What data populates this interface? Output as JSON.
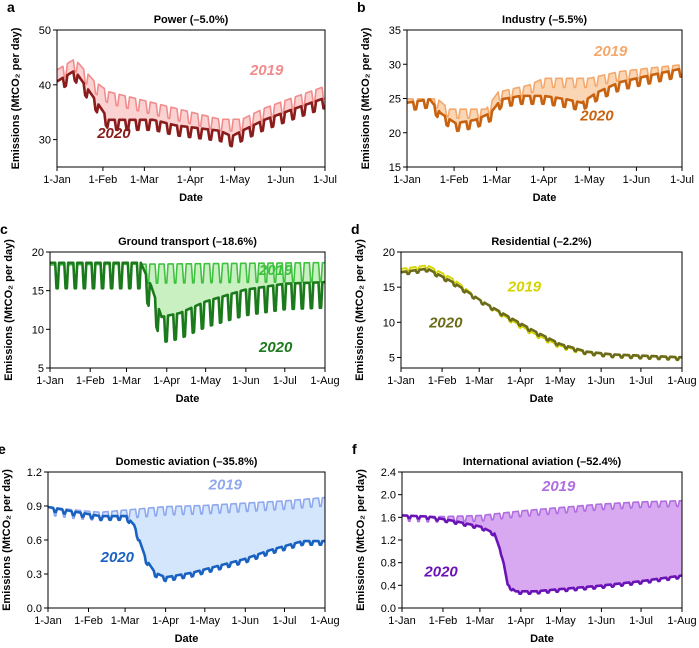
{
  "chart_data": [
    {
      "letter": "a",
      "title": "Power (–5.0%)",
      "type": "line",
      "xlabel": "Date",
      "ylabel": "Emissions (MtCO₂ per day)",
      "x_ticks": [
        "1-Jan",
        "1-Feb",
        "1-Mar",
        "1-Apr",
        "1-May",
        "1-Jun",
        "1-Jul"
      ],
      "x_tick_days": [
        0,
        31,
        59,
        90,
        120,
        151,
        181
      ],
      "xlim": [
        0,
        181
      ],
      "ylim": [
        25,
        50
      ],
      "y_ticks": [
        30,
        40,
        50
      ],
      "colors": {
        "2019": "#f28b8b",
        "2020": "#8b1c1c",
        "fill": "#fbd2d2"
      },
      "series": [
        {
          "name": "2019",
          "knots": [
            [
              0,
              42
            ],
            [
              12,
              44
            ],
            [
              25,
              40
            ],
            [
              35,
              38
            ],
            [
              50,
              37
            ],
            [
              65,
              36
            ],
            [
              80,
              35
            ],
            [
              95,
              34
            ],
            [
              110,
              33
            ],
            [
              125,
              33
            ],
            [
              140,
              35
            ],
            [
              160,
              37
            ],
            [
              181,
              39
            ]
          ],
          "amp": 2.6,
          "period": 7
        },
        {
          "name": "2020",
          "knots": [
            [
              0,
              40
            ],
            [
              12,
              42
            ],
            [
              25,
              37
            ],
            [
              35,
              33
            ],
            [
              50,
              33
            ],
            [
              65,
              33
            ],
            [
              80,
              32
            ],
            [
              95,
              31.5
            ],
            [
              110,
              31
            ],
            [
              118,
              30
            ],
            [
              125,
              31
            ],
            [
              140,
              33
            ],
            [
              160,
              35
            ],
            [
              181,
              37
            ]
          ],
          "amp": 2.2,
          "period": 7
        }
      ]
    },
    {
      "letter": "b",
      "title": "Industry (–5.5%)",
      "type": "line",
      "xlabel": "Date",
      "ylabel": "Emissions (MtCO₂ per day)",
      "x_ticks": [
        "1-Jan",
        "1-Feb",
        "1-Mar",
        "1-Apr",
        "1-May",
        "1-Jun",
        "1-Jul"
      ],
      "x_tick_days": [
        0,
        31,
        59,
        90,
        120,
        151,
        181
      ],
      "xlim": [
        0,
        181
      ],
      "ylim": [
        15,
        35
      ],
      "y_ticks": [
        15,
        20,
        25,
        30,
        35
      ],
      "colors": {
        "2019": "#f5a86b",
        "2020": "#c8620f",
        "fill": "#fbd6b4"
      },
      "series": [
        {
          "name": "2019",
          "knots": [
            [
              0,
              24.5
            ],
            [
              20,
              24.5
            ],
            [
              28,
              23
            ],
            [
              40,
              23
            ],
            [
              52,
              23
            ],
            [
              60,
              25.5
            ],
            [
              80,
              26.5
            ],
            [
              90,
              27.5
            ],
            [
              105,
              27.5
            ],
            [
              120,
              27.5
            ],
            [
              140,
              28.5
            ],
            [
              160,
              29
            ],
            [
              181,
              29.5
            ]
          ],
          "amp": 1.6,
          "period": 7
        },
        {
          "name": "2020",
          "knots": [
            [
              0,
              24
            ],
            [
              15,
              24.5
            ],
            [
              22,
              22.5
            ],
            [
              32,
              21
            ],
            [
              45,
              21.5
            ],
            [
              55,
              22.5
            ],
            [
              62,
              24.5
            ],
            [
              75,
              25
            ],
            [
              90,
              25
            ],
            [
              105,
              24.5
            ],
            [
              115,
              24
            ],
            [
              125,
              25.5
            ],
            [
              140,
              27
            ],
            [
              160,
              28
            ],
            [
              181,
              29
            ]
          ],
          "amp": 1.4,
          "period": 7
        }
      ]
    },
    {
      "letter": "c",
      "title": "Ground transport (–18.6%)",
      "type": "line",
      "xlabel": "Date",
      "ylabel": "Emissions (MtCO₂ per day)",
      "x_ticks": [
        "1-Jan",
        "1-Feb",
        "1-Mar",
        "1-Apr",
        "1-May",
        "1-Jun",
        "1-Jul",
        "1-Aug"
      ],
      "x_tick_days": [
        0,
        31,
        59,
        90,
        120,
        151,
        181,
        212
      ],
      "xlim": [
        0,
        212
      ],
      "ylim": [
        5,
        20
      ],
      "y_ticks": [
        5,
        10,
        15,
        20
      ],
      "colors": {
        "2019": "#3fc23f",
        "2020": "#1b7a1b",
        "fill": "#c8f0c0"
      },
      "series": [
        {
          "name": "2019",
          "knots": [
            [
              0,
              17.5
            ],
            [
              212,
              17.8
            ]
          ],
          "amp": 3.0,
          "period": 7
        },
        {
          "name": "2020",
          "knots": [
            [
              0,
              17.5
            ],
            [
              70,
              17.5
            ],
            [
              78,
              14.5
            ],
            [
              86,
              10.5
            ],
            [
              100,
              11
            ],
            [
              120,
              12.5
            ],
            [
              150,
              14
            ],
            [
              181,
              14.8
            ],
            [
              212,
              15
            ]
          ],
          "amp": 4.0,
          "period": 7
        }
      ]
    },
    {
      "letter": "d",
      "title": "Residential (–2.2%)",
      "type": "line",
      "xlabel": "Date",
      "ylabel": "Emissions (MtCO₂ per day)",
      "x_ticks": [
        "1-Jan",
        "1-Feb",
        "1-Mar",
        "1-Apr",
        "1-May",
        "1-Jun",
        "1-Jul",
        "1-Aug"
      ],
      "x_tick_days": [
        0,
        31,
        59,
        90,
        120,
        151,
        181,
        212
      ],
      "xlim": [
        0,
        212
      ],
      "ylim": [
        3.5,
        20
      ],
      "y_ticks": [
        5,
        10,
        15,
        20
      ],
      "colors": {
        "2019": "#d4d400",
        "2020": "#6b6b1a",
        "fill": "#eeee88"
      },
      "series": [
        {
          "name": "2019",
          "knots": [
            [
              0,
              17.5
            ],
            [
              20,
              18
            ],
            [
              40,
              16
            ],
            [
              60,
              13
            ],
            [
              80,
              10.5
            ],
            [
              100,
              8.3
            ],
            [
              120,
              6.5
            ],
            [
              140,
              5.6
            ],
            [
              160,
              5.2
            ],
            [
              212,
              4.8
            ]
          ],
          "amp": 0.45,
          "period": 7
        },
        {
          "name": "2020",
          "knots": [
            [
              0,
              17
            ],
            [
              20,
              17.5
            ],
            [
              40,
              15.5
            ],
            [
              60,
              13
            ],
            [
              80,
              10.8
            ],
            [
              100,
              8.7
            ],
            [
              120,
              6.8
            ],
            [
              140,
              5.7
            ],
            [
              160,
              5.3
            ],
            [
              212,
              4.9
            ]
          ],
          "amp": 0.45,
          "period": 7
        }
      ]
    },
    {
      "letter": "e",
      "title": "Domestic aviation (–35.8%)",
      "type": "line",
      "xlabel": "Date",
      "ylabel": "Emissions (MtCO₂ per day)",
      "x_ticks": [
        "1-Jan",
        "1-Feb",
        "1-Mar",
        "1-Apr",
        "1-May",
        "1-Jun",
        "1-Jul",
        "1-Aug"
      ],
      "x_tick_days": [
        0,
        31,
        59,
        90,
        120,
        151,
        181,
        212
      ],
      "xlim": [
        0,
        212
      ],
      "ylim": [
        0,
        1.2
      ],
      "y_ticks": [
        0.0,
        0.3,
        0.6,
        0.9,
        1.2
      ],
      "y_tick_labels": [
        "0.0",
        "0.3",
        "0.6",
        "0.9",
        "1.2"
      ],
      "colors": {
        "2019": "#8fa8ee",
        "2020": "#1a62c2",
        "fill": "#d3e6fb"
      },
      "series": [
        {
          "name": "2019",
          "knots": [
            [
              0,
              0.87
            ],
            [
              20,
              0.84
            ],
            [
              40,
              0.82
            ],
            [
              60,
              0.84
            ],
            [
              90,
              0.87
            ],
            [
              120,
              0.88
            ],
            [
              150,
              0.9
            ],
            [
              181,
              0.92
            ],
            [
              212,
              0.95
            ]
          ],
          "amp": 0.09,
          "period": 7
        },
        {
          "name": "2020",
          "knots": [
            [
              0,
              0.88
            ],
            [
              20,
              0.84
            ],
            [
              40,
              0.8
            ],
            [
              60,
              0.8
            ],
            [
              66,
              0.72
            ],
            [
              75,
              0.42
            ],
            [
              82,
              0.3
            ],
            [
              90,
              0.26
            ],
            [
              110,
              0.3
            ],
            [
              130,
              0.36
            ],
            [
              150,
              0.42
            ],
            [
              170,
              0.5
            ],
            [
              195,
              0.58
            ],
            [
              212,
              0.58
            ]
          ],
          "amp": 0.04,
          "period": 7
        }
      ]
    },
    {
      "letter": "f",
      "title": "International aviation (–52.4%)",
      "type": "line",
      "xlabel": "Date",
      "ylabel": "Emissions (MtCO₂ per day)",
      "x_ticks": [
        "1-Jan",
        "1-Feb",
        "1-Mar",
        "1-Apr",
        "1-May",
        "1-Jun",
        "1-Jul",
        "1-Aug"
      ],
      "x_tick_days": [
        0,
        31,
        59,
        90,
        120,
        151,
        181,
        212
      ],
      "xlim": [
        0,
        212
      ],
      "ylim": [
        0,
        2.4
      ],
      "y_ticks": [
        0.0,
        0.4,
        0.8,
        1.2,
        1.6,
        2.0,
        2.4
      ],
      "y_tick_labels": [
        "0.0",
        "0.4",
        "0.8",
        "1.2",
        "1.6",
        "2.0",
        "2.4"
      ],
      "colors": {
        "2019": "#b06ee0",
        "2020": "#6a14b8",
        "fill": "#d8a8f0"
      },
      "series": [
        {
          "name": "2019",
          "knots": [
            [
              0,
              1.6
            ],
            [
              30,
              1.58
            ],
            [
              60,
              1.6
            ],
            [
              90,
              1.68
            ],
            [
              120,
              1.74
            ],
            [
              150,
              1.8
            ],
            [
              181,
              1.84
            ],
            [
              212,
              1.86
            ]
          ],
          "amp": 0.12,
          "period": 7
        },
        {
          "name": "2020",
          "knots": [
            [
              0,
              1.62
            ],
            [
              20,
              1.6
            ],
            [
              40,
              1.52
            ],
            [
              60,
              1.42
            ],
            [
              70,
              1.3
            ],
            [
              76,
              0.9
            ],
            [
              80,
              0.4
            ],
            [
              86,
              0.28
            ],
            [
              100,
              0.28
            ],
            [
              120,
              0.32
            ],
            [
              150,
              0.38
            ],
            [
              181,
              0.46
            ],
            [
              212,
              0.56
            ]
          ],
          "amp": 0.05,
          "period": 7
        }
      ]
    }
  ]
}
